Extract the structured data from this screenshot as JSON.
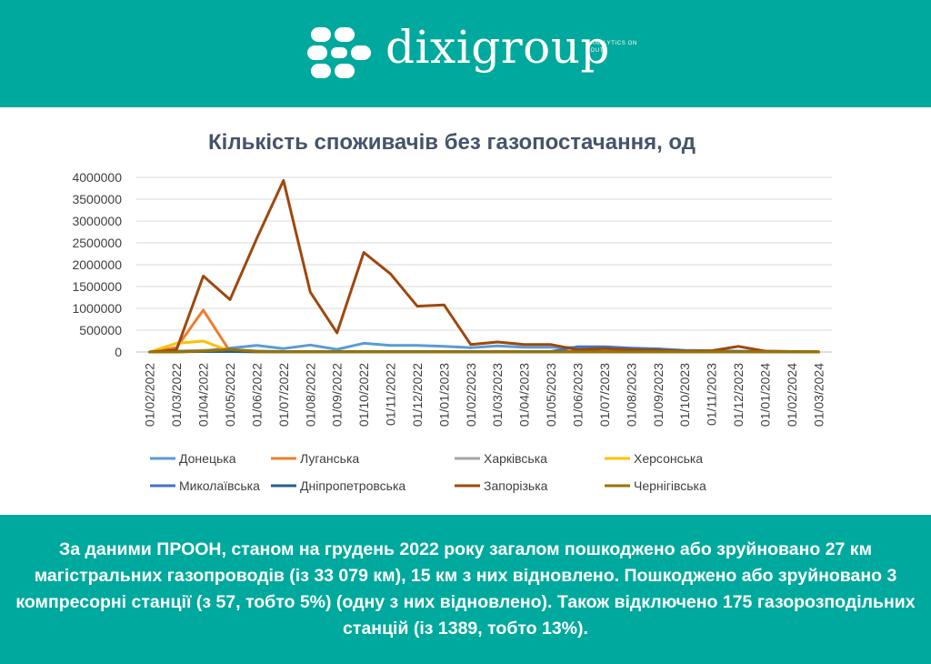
{
  "header": {
    "logo_text": "dixigroup",
    "logo_tagline": "ANALYTICS ON DUTY"
  },
  "colors": {
    "header_bg": "#00a99d",
    "title": "#44546a"
  },
  "chart_data": {
    "type": "line",
    "title": "Кількість споживачів без газопостачання, од",
    "xlabel": "",
    "ylabel": "",
    "ylim": [
      0,
      4000000
    ],
    "yticks": [
      "0",
      "500000",
      "1000000",
      "1500000",
      "2000000",
      "2500000",
      "3000000",
      "3500000",
      "4000000"
    ],
    "grid": true,
    "legend_position": "bottom",
    "categories": [
      "01/02/2022",
      "01/03/2022",
      "01/04/2022",
      "01/05/2022",
      "01/06/2022",
      "01/07/2022",
      "01/08/2022",
      "01/09/2022",
      "01/10/2022",
      "01/11/2022",
      "01/12/2022",
      "01/01/2023",
      "01/02/2023",
      "01/03/2023",
      "01/04/2023",
      "01/05/2023",
      "01/06/2023",
      "01/07/2023",
      "01/08/2023",
      "01/09/2023",
      "01/10/2023",
      "01/11/2023",
      "01/12/2023",
      "01/01/2024",
      "01/02/2024",
      "01/03/2024"
    ],
    "series": [
      {
        "name": "Донецька",
        "color": "#5b9bd5",
        "values": [
          0,
          5000,
          30000,
          90000,
          150000,
          80000,
          160000,
          60000,
          200000,
          150000,
          150000,
          130000,
          100000,
          140000,
          110000,
          110000,
          100000,
          100000,
          80000,
          70000,
          40000,
          30000,
          20000,
          15000,
          10000,
          5000
        ]
      },
      {
        "name": "Луганська",
        "color": "#ed7d31",
        "values": [
          0,
          100000,
          960000,
          10000,
          5000,
          0,
          0,
          0,
          0,
          0,
          0,
          0,
          0,
          0,
          0,
          0,
          0,
          0,
          0,
          0,
          0,
          0,
          0,
          0,
          0,
          0
        ]
      },
      {
        "name": "Харківська",
        "color": "#a5a5a5",
        "values": [
          0,
          20000,
          40000,
          30000,
          10000,
          5000,
          5000,
          5000,
          5000,
          5000,
          5000,
          5000,
          5000,
          5000,
          5000,
          5000,
          5000,
          5000,
          5000,
          5000,
          5000,
          5000,
          5000,
          5000,
          5000,
          5000
        ]
      },
      {
        "name": "Херсонська",
        "color": "#ffc000",
        "values": [
          0,
          200000,
          250000,
          20000,
          10000,
          5000,
          5000,
          5000,
          5000,
          5000,
          5000,
          5000,
          5000,
          5000,
          5000,
          5000,
          5000,
          5000,
          5000,
          5000,
          5000,
          5000,
          5000,
          5000,
          5000,
          5000
        ]
      },
      {
        "name": "Миколаївська",
        "color": "#4472c4",
        "values": [
          0,
          10000,
          20000,
          50000,
          20000,
          10000,
          10000,
          10000,
          10000,
          10000,
          10000,
          10000,
          10000,
          10000,
          10000,
          10000,
          120000,
          120000,
          90000,
          70000,
          30000,
          20000,
          10000,
          10000,
          5000,
          0
        ]
      },
      {
        "name": "Дніпропетровська",
        "color": "#255e91",
        "values": [
          0,
          5000,
          10000,
          10000,
          5000,
          5000,
          5000,
          5000,
          5000,
          5000,
          5000,
          5000,
          5000,
          5000,
          5000,
          5000,
          5000,
          5000,
          5000,
          5000,
          5000,
          5000,
          5000,
          5000,
          5000,
          0
        ]
      },
      {
        "name": "Запорізька",
        "color": "#9e480e",
        "values": [
          0,
          50000,
          1740000,
          1200000,
          2600000,
          3930000,
          1370000,
          440000,
          2280000,
          1790000,
          1050000,
          1080000,
          170000,
          230000,
          170000,
          170000,
          50000,
          80000,
          50000,
          40000,
          20000,
          30000,
          130000,
          20000,
          10000,
          5000
        ]
      },
      {
        "name": "Чернігівська",
        "color": "#997300",
        "values": [
          0,
          0,
          20000,
          60000,
          10000,
          5000,
          5000,
          5000,
          5000,
          5000,
          5000,
          5000,
          5000,
          5000,
          5000,
          5000,
          5000,
          5000,
          5000,
          5000,
          5000,
          5000,
          5000,
          5000,
          5000,
          0
        ]
      }
    ]
  },
  "footer": {
    "text": "За даними ПРООН, станом на грудень 2022 року загалом пошкоджено або зруйновано 27 км магістральних газопроводів (із 33 079 км), 15 км з них відновлено. Пошкоджено або зруйновано 3 компресорні станції (з 57, тобто 5%) (одну з них відновлено). Також відключено 175 газорозподільних станцій (із 1389, тобто 13%)."
  }
}
